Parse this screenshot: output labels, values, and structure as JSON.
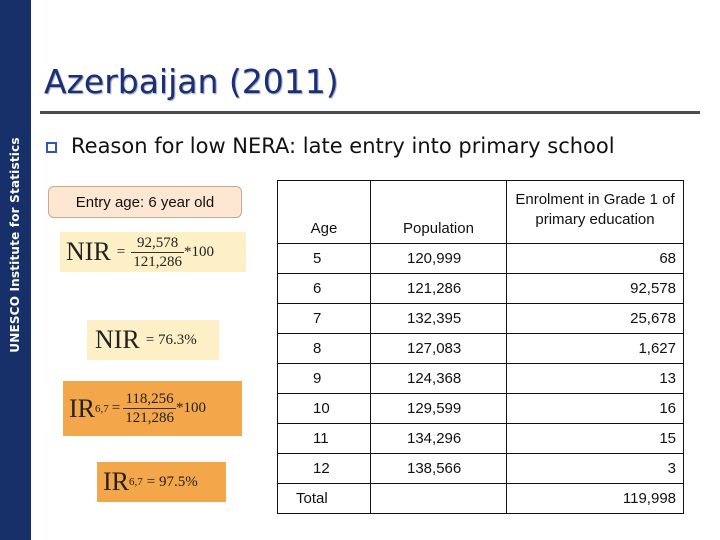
{
  "sidebar": {
    "label": "UNESCO Institute for Statistics"
  },
  "title": "Azerbaijan (2011)",
  "bullet": {
    "text": "Reason for low NERA: late entry into primary school"
  },
  "entry_box": {
    "text": "Entry age: 6 year old"
  },
  "formulas": {
    "f1": {
      "lhs": "NIR",
      "eq": "=",
      "numerator": "92,578",
      "denominator": "121,286",
      "tail": "*100"
    },
    "f2": {
      "lhs": "NIR",
      "rhs": "= 76.3%"
    },
    "f3": {
      "lhs": "IR",
      "sub": "6,7",
      "eq": "=",
      "numerator": "118,256",
      "denominator": "121,286",
      "tail": "*100"
    },
    "f4": {
      "lhs": "IR",
      "sub": "6,7",
      "rhs": "= 97.5%"
    }
  },
  "table": {
    "headers": {
      "age": "Age",
      "population": "Population",
      "enrolment": "Enrolment in Grade 1 of primary education"
    },
    "rows": [
      {
        "age": "5",
        "population": "120,999",
        "enrolment": "68"
      },
      {
        "age": "6",
        "population": "121,286",
        "enrolment": "92,578"
      },
      {
        "age": "7",
        "population": "132,395",
        "enrolment": "25,678"
      },
      {
        "age": "8",
        "population": "127,083",
        "enrolment": "1,627"
      },
      {
        "age": "9",
        "population": "124,368",
        "enrolment": "13"
      },
      {
        "age": "10",
        "population": "129,599",
        "enrolment": "16"
      },
      {
        "age": "11",
        "population": "134,296",
        "enrolment": "15"
      },
      {
        "age": "12",
        "population": "138,566",
        "enrolment": "3"
      }
    ],
    "total": {
      "label": "Total",
      "enrolment": "119,998"
    }
  },
  "colors": {
    "sidebar": "#18306a",
    "title": "#1a2f75",
    "formula_light": "#fdf0c7",
    "formula_orange": "#f3a74a"
  }
}
